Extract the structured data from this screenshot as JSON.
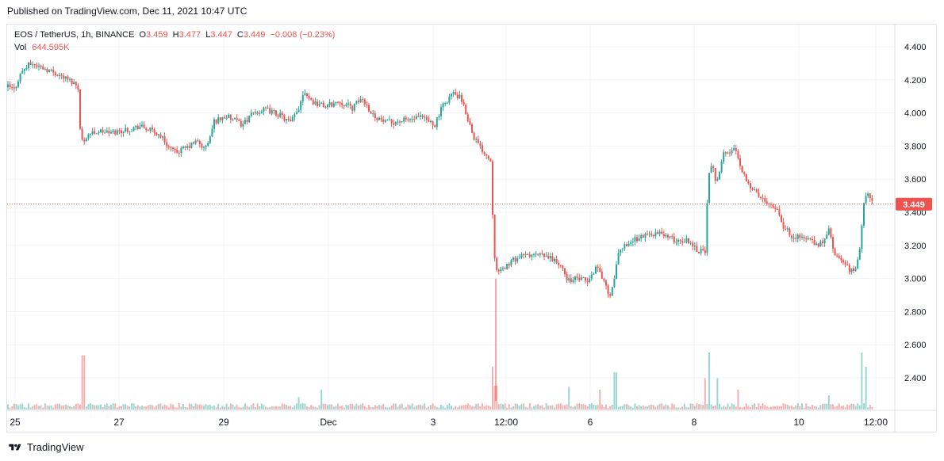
{
  "header": {
    "published": "Published on TradingView.com, Dec 11, 2021 10:47 UTC"
  },
  "legend": {
    "symbol": "EOS / TetherUS, 1h, BINANCE",
    "open_label": "O",
    "open": "3.459",
    "high_label": "H",
    "high": "3.477",
    "low_label": "L",
    "low": "3.447",
    "close_label": "C",
    "close": "3.449",
    "change": "−0.008 (−0.23%)",
    "vol_label": "Vol",
    "vol_value": "644.595K"
  },
  "footer": {
    "brand": "TradingView",
    "logo_icon": "tradingview-logo-icon"
  },
  "colors": {
    "up": "#26a69a",
    "down": "#ef5350",
    "grid": "#f0f3fa",
    "price_line": "#ef5350"
  },
  "chart_data": {
    "type": "candlestick",
    "timeframe": "1h",
    "current_price": 3.449,
    "ylim": [
      2.22,
      4.61
    ],
    "yticks": [
      "4.400",
      "4.200",
      "4.000",
      "3.800",
      "3.600",
      "3.400",
      "3.200",
      "3.000",
      "2.800",
      "2.600",
      "2.400"
    ],
    "xticks": [
      "25",
      "27",
      "29",
      "Dec",
      "3",
      "12:00",
      "6",
      "8",
      "10",
      "12:00"
    ],
    "price_path": [
      [
        0,
        4.11
      ],
      [
        10,
        4.16
      ],
      [
        18,
        4.14
      ],
      [
        27,
        4.25
      ],
      [
        39,
        4.3
      ],
      [
        56,
        4.27
      ],
      [
        75,
        4.23
      ],
      [
        94,
        4.18
      ],
      [
        100,
        4.15
      ],
      [
        101,
        3.9
      ],
      [
        104,
        3.82
      ],
      [
        110,
        3.87
      ],
      [
        124,
        3.89
      ],
      [
        140,
        3.88
      ],
      [
        160,
        3.9
      ],
      [
        176,
        3.92
      ],
      [
        192,
        3.89
      ],
      [
        203,
        3.86
      ],
      [
        212,
        3.8
      ],
      [
        220,
        3.76
      ],
      [
        236,
        3.79
      ],
      [
        248,
        3.83
      ],
      [
        258,
        3.78
      ],
      [
        264,
        3.84
      ],
      [
        270,
        3.95
      ],
      [
        285,
        3.98
      ],
      [
        305,
        3.93
      ],
      [
        320,
        4.0
      ],
      [
        335,
        4.02
      ],
      [
        352,
        3.99
      ],
      [
        366,
        3.94
      ],
      [
        376,
        4.02
      ],
      [
        383,
        4.14
      ],
      [
        393,
        4.07
      ],
      [
        410,
        4.04
      ],
      [
        428,
        4.07
      ],
      [
        444,
        4.03
      ],
      [
        456,
        4.09
      ],
      [
        470,
        3.99
      ],
      [
        486,
        3.94
      ],
      [
        502,
        3.95
      ],
      [
        515,
        3.96
      ],
      [
        532,
        3.97
      ],
      [
        548,
        3.93
      ],
      [
        558,
        4.04
      ],
      [
        570,
        4.12
      ],
      [
        580,
        4.09
      ],
      [
        588,
        3.99
      ],
      [
        597,
        3.86
      ],
      [
        604,
        3.8
      ],
      [
        613,
        3.75
      ],
      [
        620,
        3.7
      ],
      [
        621,
        3.4
      ],
      [
        624,
        3.1
      ],
      [
        629,
        3.03
      ],
      [
        639,
        3.08
      ],
      [
        650,
        3.12
      ],
      [
        664,
        3.14
      ],
      [
        680,
        3.14
      ],
      [
        697,
        3.12
      ],
      [
        707,
        3.07
      ],
      [
        716,
        2.99
      ],
      [
        728,
        3.0
      ],
      [
        742,
        2.98
      ],
      [
        752,
        3.08
      ],
      [
        760,
        3.0
      ],
      [
        770,
        2.88
      ],
      [
        778,
        3.12
      ],
      [
        786,
        3.2
      ],
      [
        802,
        3.24
      ],
      [
        818,
        3.27
      ],
      [
        836,
        3.27
      ],
      [
        850,
        3.23
      ],
      [
        868,
        3.23
      ],
      [
        880,
        3.17
      ],
      [
        889,
        3.17
      ],
      [
        893,
        3.62
      ],
      [
        898,
        3.68
      ],
      [
        903,
        3.58
      ],
      [
        912,
        3.75
      ],
      [
        928,
        3.78
      ],
      [
        936,
        3.64
      ],
      [
        946,
        3.56
      ],
      [
        957,
        3.49
      ],
      [
        970,
        3.46
      ],
      [
        980,
        3.42
      ],
      [
        988,
        3.31
      ],
      [
        998,
        3.26
      ],
      [
        1008,
        3.25
      ],
      [
        1020,
        3.24
      ],
      [
        1030,
        3.19
      ],
      [
        1040,
        3.24
      ],
      [
        1046,
        3.3
      ],
      [
        1052,
        3.13
      ],
      [
        1064,
        3.1
      ],
      [
        1072,
        3.04
      ],
      [
        1078,
        3.06
      ],
      [
        1084,
        3.18
      ],
      [
        1090,
        3.5
      ],
      [
        1096,
        3.5
      ],
      [
        1102,
        3.449
      ]
    ],
    "volume_spikes": [
      [
        105,
        0.95
      ],
      [
        377,
        0.22
      ],
      [
        406,
        0.35
      ],
      [
        622,
        0.75
      ],
      [
        625,
        0.42
      ],
      [
        717,
        0.4
      ],
      [
        756,
        0.35
      ],
      [
        776,
        0.65
      ],
      [
        889,
        0.55
      ],
      [
        895,
        1.0
      ],
      [
        905,
        0.55
      ],
      [
        930,
        0.35
      ],
      [
        1044,
        0.25
      ],
      [
        1086,
        1.0
      ],
      [
        1092,
        0.75
      ]
    ]
  }
}
